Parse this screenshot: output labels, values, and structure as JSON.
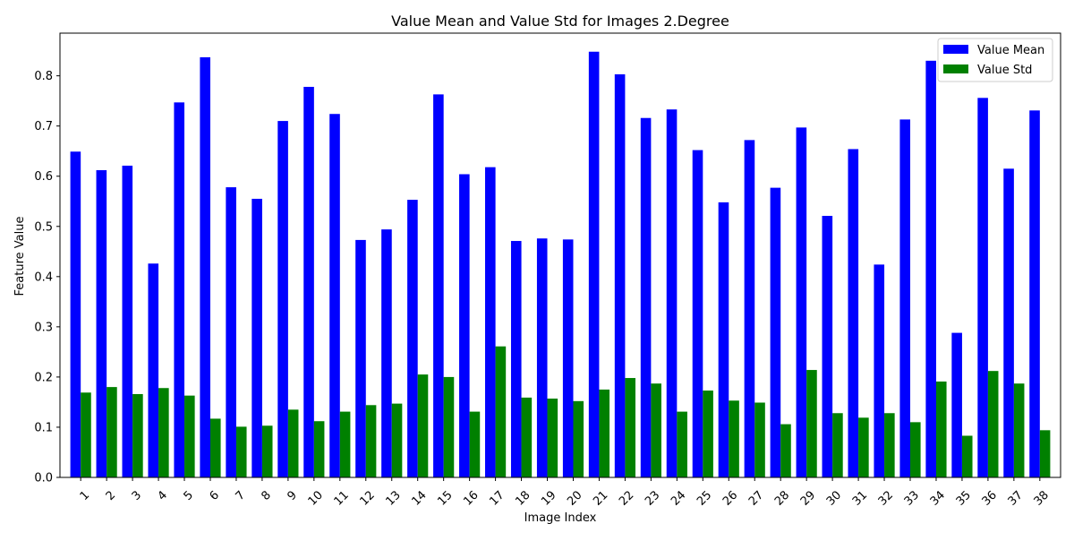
{
  "chart_data": {
    "type": "bar",
    "title": "Value Mean and Value Std for Images 2.Degree",
    "xlabel": "Image Index",
    "ylabel": "Feature Value",
    "categories": [
      "1",
      "2",
      "3",
      "4",
      "5",
      "6",
      "7",
      "8",
      "9",
      "10",
      "11",
      "12",
      "13",
      "14",
      "15",
      "16",
      "17",
      "18",
      "19",
      "20",
      "21",
      "22",
      "23",
      "24",
      "25",
      "26",
      "27",
      "28",
      "29",
      "30",
      "31",
      "32",
      "33",
      "34",
      "35",
      "36",
      "37",
      "38"
    ],
    "ylim": [
      0,
      0.885
    ],
    "yticks": [
      "0.0",
      "0.1",
      "0.2",
      "0.3",
      "0.4",
      "0.5",
      "0.6",
      "0.7",
      "0.8"
    ],
    "yticks_values": [
      0,
      0.1,
      0.2,
      0.3,
      0.4,
      0.5,
      0.6,
      0.7,
      0.8
    ],
    "series": [
      {
        "name": "Value Mean",
        "color": "#0000ff",
        "values": [
          0.649,
          0.612,
          0.621,
          0.426,
          0.747,
          0.837,
          0.578,
          0.555,
          0.71,
          0.778,
          0.724,
          0.473,
          0.494,
          0.553,
          0.763,
          0.604,
          0.618,
          0.471,
          0.476,
          0.474,
          0.848,
          0.803,
          0.716,
          0.733,
          0.652,
          0.548,
          0.672,
          0.577,
          0.697,
          0.521,
          0.654,
          0.424,
          0.713,
          0.83,
          0.288,
          0.756,
          0.615,
          0.731
        ]
      },
      {
        "name": "Value Std",
        "color": "#008000",
        "values": [
          0.169,
          0.18,
          0.166,
          0.178,
          0.163,
          0.117,
          0.101,
          0.103,
          0.135,
          0.112,
          0.131,
          0.144,
          0.147,
          0.205,
          0.2,
          0.131,
          0.261,
          0.159,
          0.157,
          0.152,
          0.175,
          0.198,
          0.187,
          0.131,
          0.173,
          0.153,
          0.149,
          0.106,
          0.214,
          0.128,
          0.119,
          0.128,
          0.11,
          0.191,
          0.083,
          0.212,
          0.187,
          0.094
        ]
      }
    ],
    "legend_position": "top-right",
    "grid": false
  }
}
